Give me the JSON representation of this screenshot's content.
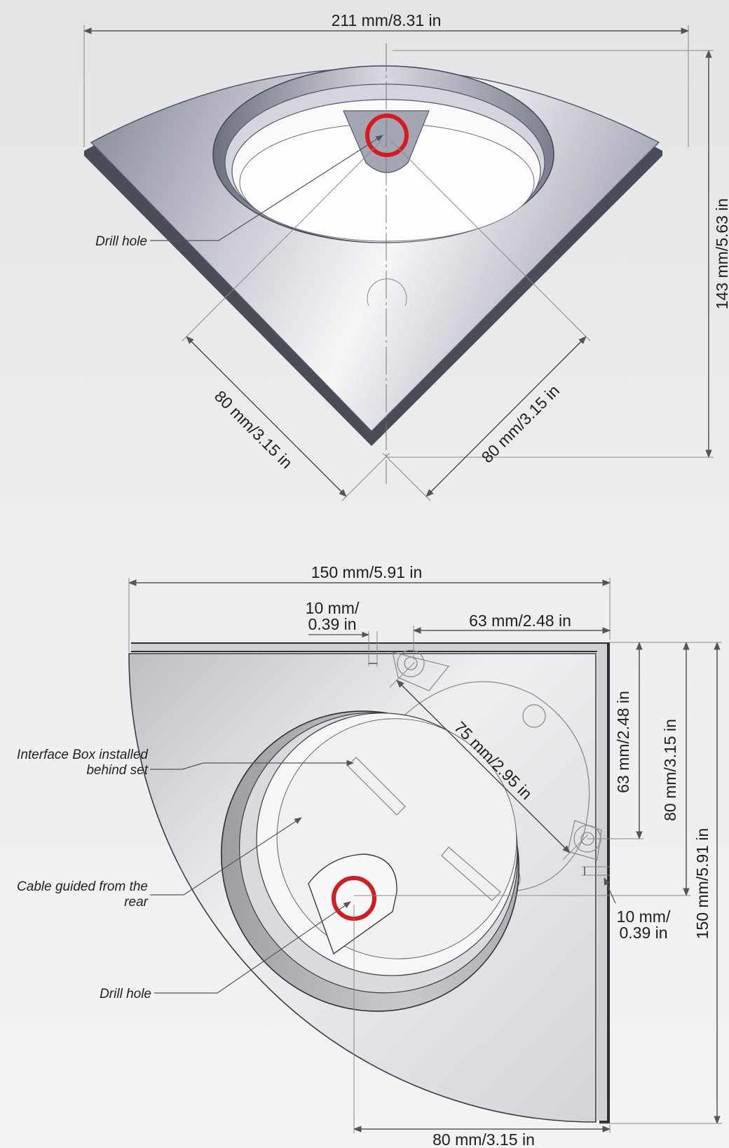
{
  "top_view": {
    "dim_width": "211 mm/8.31 in",
    "dim_height": "143 mm/5.63 in",
    "dim_edge_left": "80 mm/3.15 in",
    "dim_edge_right": "80 mm/3.15 in",
    "callout_drill": "Drill hole"
  },
  "bottom_view": {
    "dim_width": "150 mm/5.91 in",
    "dim_offset_top_line1": "10 mm/",
    "dim_offset_top_line2": "0.39 in",
    "dim_hole_horizontal": "63 mm/2.48 in",
    "dim_hole_vertical": "63 mm/2.48 in",
    "dim_diagonal": "75 mm/2.95 in",
    "dim_80_vertical": "80 mm/3.15 in",
    "dim_height": "150 mm/5.91 in",
    "dim_offset_side_line1": "10 mm/",
    "dim_offset_side_line2": "0.39 in",
    "dim_bottom": "80 mm/3.15 in",
    "callout_interface_line1": "Interface Box installed",
    "callout_interface_line2": "behind set",
    "callout_cable_line1": "Cable guided from the",
    "callout_cable_line2": "rear",
    "callout_drill": "Drill hole"
  },
  "colors": {
    "drill_marker": "#d61a1f",
    "metal_light": "#f4f4f6",
    "metal_dark": "#9a9cab"
  }
}
